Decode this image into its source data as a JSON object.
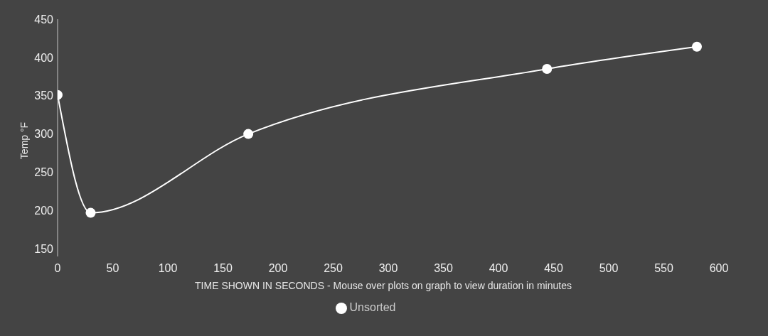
{
  "chart_data": {
    "type": "line",
    "xlabel": "TIME SHOWN IN SECONDS - Mouse over plots on graph to view duration in minutes",
    "ylabel": "Temp °F",
    "x": [
      0,
      30,
      173,
      444,
      580
    ],
    "series": [
      {
        "name": "Unsorted",
        "color": "#ffffff",
        "values": [
          351,
          197,
          300,
          385,
          414
        ]
      }
    ],
    "xlim": [
      0,
      600
    ],
    "xticks": [
      0,
      50,
      100,
      150,
      200,
      250,
      300,
      350,
      400,
      450,
      500,
      550,
      600
    ],
    "ylim": [
      140,
      450
    ],
    "yticks": [
      150,
      200,
      250,
      300,
      350,
      400,
      450
    ],
    "legend": "bottom",
    "marker": "circle",
    "line_style": "solid"
  }
}
